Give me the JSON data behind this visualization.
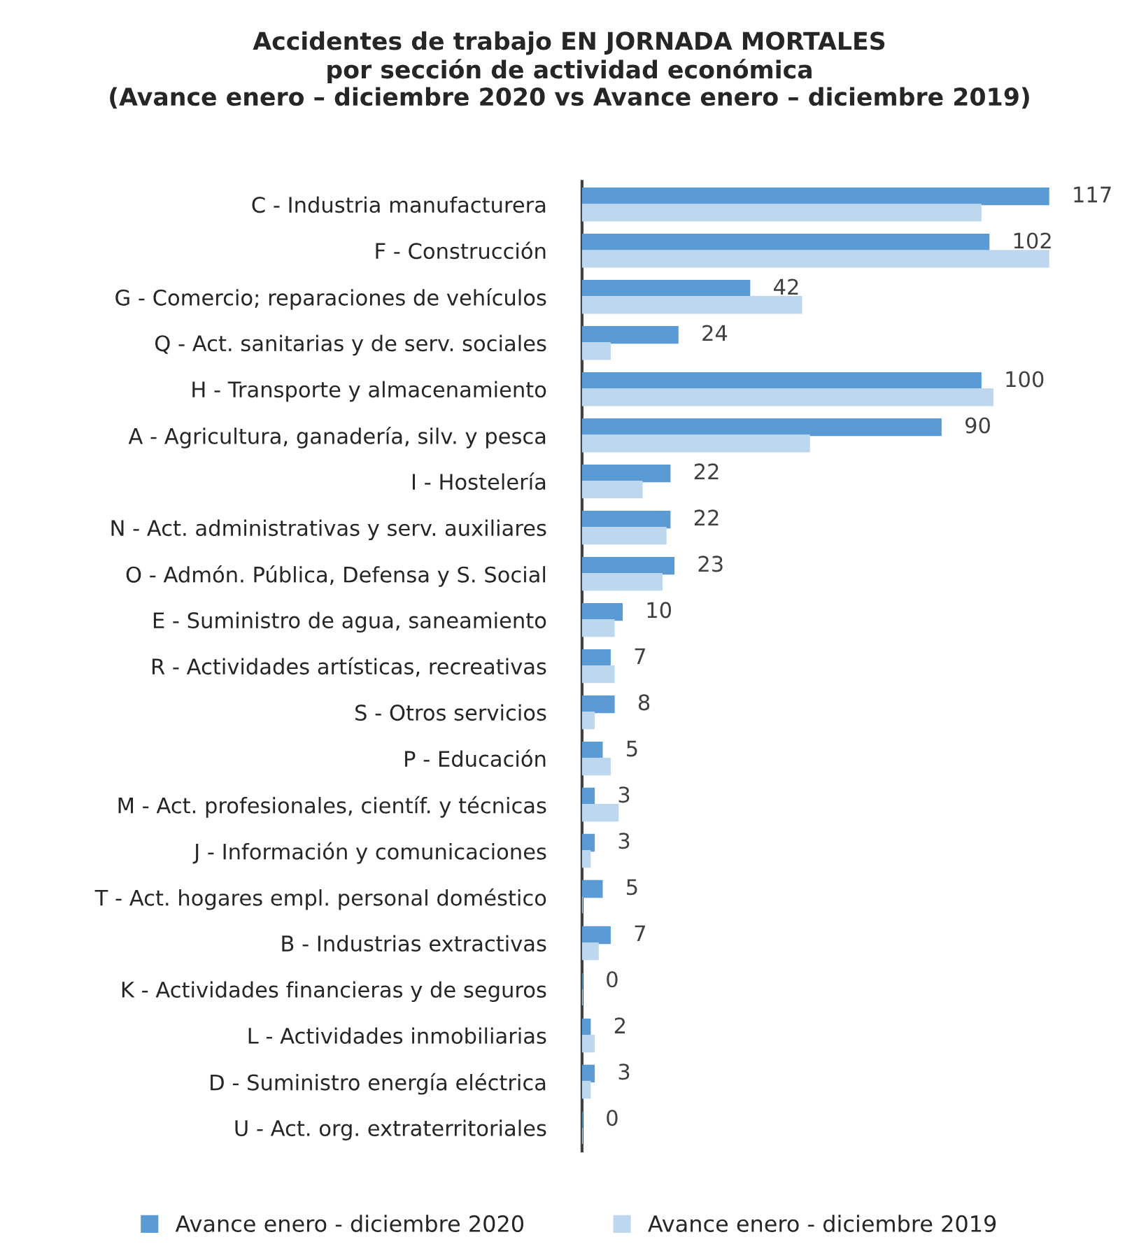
{
  "chart_data": {
    "type": "bar",
    "orientation": "horizontal",
    "title": "Accidentes de trabajo EN JORNADA MORTALES\npor sección de actividad económica\n(Avance enero – diciembre 2020 vs Avance enero – diciembre 2019)",
    "categories": [
      "C - Industria manufacturera",
      "F - Construcción",
      "G - Comercio; reparaciones de vehículos",
      "Q - Act. sanitarias y de serv. sociales",
      "H - Transporte y almacenamiento",
      "A - Agricultura, ganadería, silv. y pesca",
      "I - Hostelería",
      "N - Act. administrativas y serv. auxiliares",
      "O - Admón. Pública, Defensa y S. Social",
      "E - Suministro de agua, saneamiento",
      "R - Actividades artísticas, recreativas",
      "S - Otros servicios",
      "P - Educación",
      "M - Act. profesionales, científ. y técnicas",
      "J - Información y comunicaciones",
      "T - Act. hogares empl. personal doméstico",
      "B - Industrias extractivas",
      "K - Actividades financieras y de seguros",
      "L - Actividades inmobiliarias",
      "D - Suministro energía eléctrica",
      "U - Act. org. extraterritoriales"
    ],
    "series": [
      {
        "name": "Avance enero - diciembre 2020",
        "color": "#5b9bd5",
        "values": [
          117,
          102,
          42,
          24,
          100,
          90,
          22,
          22,
          23,
          10,
          7,
          8,
          5,
          3,
          3,
          5,
          7,
          0,
          2,
          3,
          0
        ],
        "value_labels": [
          "117",
          "102",
          "42",
          "24",
          "100",
          "90",
          "22",
          "22",
          "23",
          "10",
          "7",
          "8",
          "5",
          "3",
          "3",
          "5",
          "7",
          "0",
          "2",
          "3",
          "0"
        ]
      },
      {
        "name": "Avance enero - diciembre 2019",
        "color": "#bdd7ee",
        "values": [
          100,
          117,
          55,
          7,
          103,
          57,
          15,
          21,
          20,
          8,
          8,
          3,
          7,
          9,
          2,
          0,
          4,
          0,
          3,
          2,
          0
        ]
      }
    ],
    "legend": "bottom"
  }
}
